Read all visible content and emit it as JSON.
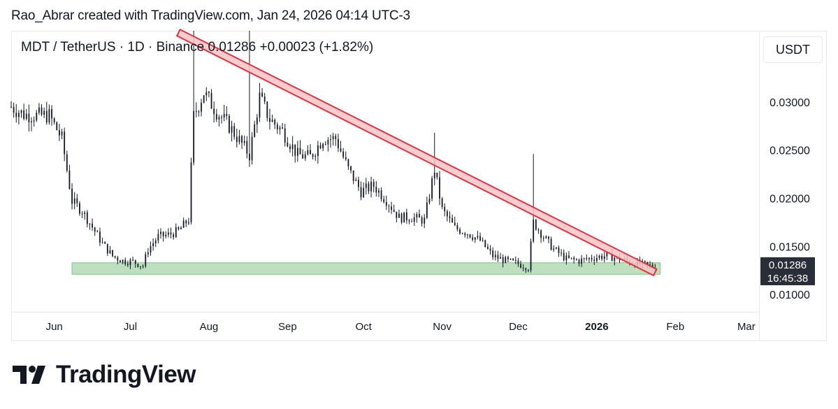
{
  "caption": "Rao_Abrar created with TradingView.com, Jan 24, 2026 04:14 UTC-3",
  "symbol": {
    "pair": "MDT / TetherUS · 1D · Binance",
    "last": "0.01286",
    "change": "+0.00023 (+1.82%)"
  },
  "currency_label": "USDT",
  "price_tag": {
    "price": "0.01286",
    "countdown": "16:45:38"
  },
  "logo_text": "TradingView",
  "colors": {
    "candle": "#131722",
    "trendline": "#e0323f",
    "trendline_fill": "#f7c4c7",
    "support_fill": "#a5d6a7",
    "support_border": "#81c784"
  },
  "chart_data": {
    "type": "candlestick",
    "title": "MDT / TetherUS · 1D · Binance",
    "y_ticks": [
      "0.03000",
      "0.02500",
      "0.02000",
      "0.01500",
      "0.01000"
    ],
    "y_tick_values": [
      0.03,
      0.025,
      0.02,
      0.015,
      0.01
    ],
    "x_ticks": [
      "Jun",
      "Jul",
      "Aug",
      "Sep",
      "Oct",
      "Nov",
      "Dec",
      "2026",
      "Feb",
      "Mar"
    ],
    "x_tick_dates": [
      "2025-06-01",
      "2025-07-01",
      "2025-08-01",
      "2025-09-01",
      "2025-10-01",
      "2025-11-01",
      "2025-12-01",
      "2026-01-01",
      "2026-02-01",
      "2026-03-01"
    ],
    "x_range": [
      "2025-05-15",
      "2026-03-06"
    ],
    "y_range": [
      0.0082,
      0.0374
    ],
    "last_price": 0.01286,
    "close_series": [
      {
        "date": "2025-05-15",
        "close": 0.0295
      },
      {
        "date": "2025-05-20",
        "close": 0.0287
      },
      {
        "date": "2025-05-25",
        "close": 0.0286
      },
      {
        "date": "2025-05-30",
        "close": 0.0286
      },
      {
        "date": "2025-06-04",
        "close": 0.0262
      },
      {
        "date": "2025-06-08",
        "close": 0.0197
      },
      {
        "date": "2025-06-12",
        "close": 0.0187
      },
      {
        "date": "2025-06-16",
        "close": 0.017
      },
      {
        "date": "2025-06-20",
        "close": 0.0153
      },
      {
        "date": "2025-06-24",
        "close": 0.014
      },
      {
        "date": "2025-06-28",
        "close": 0.0135
      },
      {
        "date": "2025-07-02",
        "close": 0.0134
      },
      {
        "date": "2025-07-06",
        "close": 0.013
      },
      {
        "date": "2025-07-08",
        "close": 0.0147
      },
      {
        "date": "2025-07-12",
        "close": 0.016
      },
      {
        "date": "2025-07-16",
        "close": 0.0162
      },
      {
        "date": "2025-07-20",
        "close": 0.0166
      },
      {
        "date": "2025-07-24",
        "close": 0.0178
      },
      {
        "date": "2025-07-26",
        "close": 0.0285
      },
      {
        "date": "2025-07-30",
        "close": 0.031
      },
      {
        "date": "2025-08-04",
        "close": 0.029
      },
      {
        "date": "2025-08-09",
        "close": 0.0275
      },
      {
        "date": "2025-08-13",
        "close": 0.026
      },
      {
        "date": "2025-08-17",
        "close": 0.0245
      },
      {
        "date": "2025-08-21",
        "close": 0.0305
      },
      {
        "date": "2025-08-25",
        "close": 0.0282
      },
      {
        "date": "2025-08-30",
        "close": 0.027
      },
      {
        "date": "2025-09-05",
        "close": 0.0245
      },
      {
        "date": "2025-09-10",
        "close": 0.0243
      },
      {
        "date": "2025-09-15",
        "close": 0.0262
      },
      {
        "date": "2025-09-20",
        "close": 0.0262
      },
      {
        "date": "2025-09-25",
        "close": 0.023
      },
      {
        "date": "2025-09-30",
        "close": 0.0207
      },
      {
        "date": "2025-10-05",
        "close": 0.0213
      },
      {
        "date": "2025-10-10",
        "close": 0.0198
      },
      {
        "date": "2025-10-15",
        "close": 0.018
      },
      {
        "date": "2025-10-20",
        "close": 0.018
      },
      {
        "date": "2025-10-25",
        "close": 0.0177
      },
      {
        "date": "2025-10-29",
        "close": 0.023
      },
      {
        "date": "2025-11-01",
        "close": 0.0188
      },
      {
        "date": "2025-11-06",
        "close": 0.0169
      },
      {
        "date": "2025-11-11",
        "close": 0.0164
      },
      {
        "date": "2025-11-16",
        "close": 0.0156
      },
      {
        "date": "2025-11-21",
        "close": 0.014
      },
      {
        "date": "2025-11-26",
        "close": 0.0135
      },
      {
        "date": "2025-12-01",
        "close": 0.0132
      },
      {
        "date": "2025-12-05",
        "close": 0.0128
      },
      {
        "date": "2025-12-07",
        "close": 0.0175
      },
      {
        "date": "2025-12-11",
        "close": 0.016
      },
      {
        "date": "2025-12-15",
        "close": 0.0147
      },
      {
        "date": "2025-12-20",
        "close": 0.0137
      },
      {
        "date": "2025-12-25",
        "close": 0.0135
      },
      {
        "date": "2025-12-30",
        "close": 0.0138
      },
      {
        "date": "2026-01-04",
        "close": 0.014
      },
      {
        "date": "2026-01-09",
        "close": 0.0138
      },
      {
        "date": "2026-01-14",
        "close": 0.0134
      },
      {
        "date": "2026-01-19",
        "close": 0.0131
      },
      {
        "date": "2026-01-24",
        "close": 0.01286
      }
    ],
    "spikes": [
      {
        "date": "2025-07-26",
        "high": 0.0374
      },
      {
        "date": "2025-08-17",
        "high": 0.0374
      },
      {
        "date": "2025-10-29",
        "high": 0.0268
      },
      {
        "date": "2025-12-07",
        "high": 0.0246
      }
    ],
    "annotations": [
      {
        "type": "trendline_channel",
        "from": {
          "date": "2025-07-20",
          "price": 0.0372
        },
        "to": {
          "date": "2026-01-24",
          "price": 0.0123
        }
      },
      {
        "type": "support_zone",
        "from_date": "2025-06-08",
        "to_date": "2026-01-26",
        "low": 0.0121,
        "high": 0.0133
      }
    ]
  }
}
